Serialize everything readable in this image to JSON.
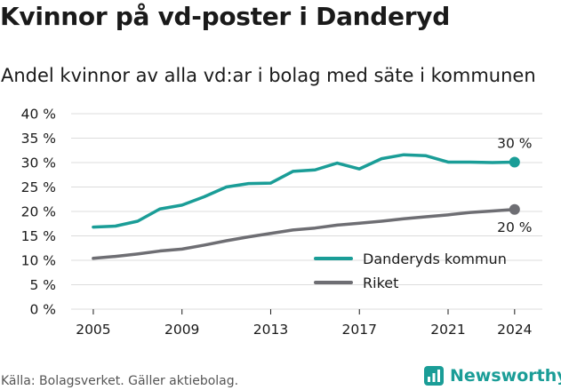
{
  "title": "Kvinnor på vd-poster i Danderyd",
  "subtitle": "Andel kvinnor av alla vd:ar i bolag med säte i kommunen",
  "source": "Källa: Bolagsverket. Gäller aktiebolag.",
  "brand": {
    "name": "Newsworthy",
    "color": "#1a9d97"
  },
  "chart_data": {
    "type": "line",
    "x": [
      2005,
      2006,
      2007,
      2008,
      2009,
      2010,
      2011,
      2012,
      2013,
      2014,
      2015,
      2016,
      2017,
      2018,
      2019,
      2020,
      2021,
      2022,
      2023,
      2024
    ],
    "x_ticks": [
      2005,
      2009,
      2013,
      2017,
      2021,
      2024
    ],
    "y_ticks": [
      0,
      5,
      10,
      15,
      20,
      25,
      30,
      35,
      40
    ],
    "y_tick_labels": [
      "0 %",
      "5 %",
      "10 %",
      "15 %",
      "20 %",
      "25 %",
      "30 %",
      "35 %",
      "40 %"
    ],
    "ylim": [
      0,
      40
    ],
    "grid": true,
    "legend_position": "bottom-right",
    "series": [
      {
        "name": "Danderyds kommun",
        "color": "#1a9d97",
        "values": [
          16.8,
          17.0,
          18.0,
          20.5,
          21.3,
          23.0,
          25.0,
          25.7,
          25.8,
          28.2,
          28.5,
          29.9,
          28.7,
          30.8,
          31.6,
          31.4,
          30.1,
          30.1,
          30.0,
          30.1
        ],
        "end_label": "30 %"
      },
      {
        "name": "Riket",
        "color": "#6e6e73",
        "values": [
          10.4,
          10.8,
          11.3,
          11.9,
          12.3,
          13.1,
          14.0,
          14.8,
          15.5,
          16.2,
          16.6,
          17.2,
          17.6,
          18.0,
          18.5,
          18.9,
          19.3,
          19.8,
          20.1,
          20.4
        ],
        "end_label": "20 %"
      }
    ]
  }
}
